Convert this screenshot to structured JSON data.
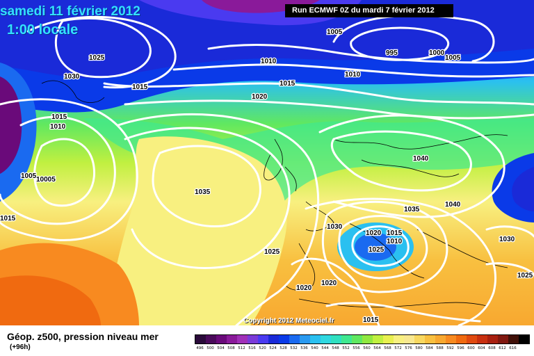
{
  "map": {
    "date_title": "samedi 11 février 2012",
    "time_title": "1:00 locale",
    "run_info": "Run ECMWF 0Z du mardi 7 février 2012",
    "copyright": "Copyright 2012 Meteociel.fr"
  },
  "isobar_labels": [
    {
      "id": "1025-a",
      "text": "1025"
    },
    {
      "id": "1030-a",
      "text": "1030"
    },
    {
      "id": "1015-a",
      "text": "1015"
    },
    {
      "id": "1015-b",
      "text": "1015"
    },
    {
      "id": "1010-a",
      "text": "1010"
    },
    {
      "id": "1005-a",
      "text": "1005"
    },
    {
      "id": "10005",
      "text": "10005"
    },
    {
      "id": "1015-c",
      "text": "1015"
    },
    {
      "id": "1005-b",
      "text": "1005"
    },
    {
      "id": "995",
      "text": "995"
    },
    {
      "id": "1000",
      "text": "1000"
    },
    {
      "id": "1005-c",
      "text": "1005"
    },
    {
      "id": "1010-b",
      "text": "1010"
    },
    {
      "id": "1010-c",
      "text": "1010"
    },
    {
      "id": "1015-d",
      "text": "1015"
    },
    {
      "id": "1020-a",
      "text": "1020"
    },
    {
      "id": "1035-a",
      "text": "1035"
    },
    {
      "id": "1040-a",
      "text": "1040"
    },
    {
      "id": "1040-b",
      "text": "1040"
    },
    {
      "id": "1035-b",
      "text": "1035"
    },
    {
      "id": "1030-b",
      "text": "1030"
    },
    {
      "id": "1020-b",
      "text": "1020"
    },
    {
      "id": "1015-e",
      "text": "1015"
    },
    {
      "id": "1010-d",
      "text": "1010"
    },
    {
      "id": "1030-c",
      "text": "1030"
    },
    {
      "id": "1025-b",
      "text": "1025"
    },
    {
      "id": "1025-c",
      "text": "1025"
    },
    {
      "id": "1020-c",
      "text": "1020"
    },
    {
      "id": "1020-d",
      "text": "1020"
    },
    {
      "id": "1015-f",
      "text": "1015"
    },
    {
      "id": "1025-d",
      "text": "1025"
    }
  ],
  "legend": {
    "title": "Géop. z500, pression niveau mer",
    "subtitle": "(+96h)",
    "scale": [
      {
        "label": "496",
        "color": "#2a0a3a"
      },
      {
        "label": "500",
        "color": "#4a0a5a"
      },
      {
        "label": "504",
        "color": "#6a0a7a"
      },
      {
        "label": "508",
        "color": "#8a1a9a"
      },
      {
        "label": "512",
        "color": "#a030b8"
      },
      {
        "label": "516",
        "color": "#7a3ad8"
      },
      {
        "label": "520",
        "color": "#4a3af0"
      },
      {
        "label": "524",
        "color": "#1a2ad8"
      },
      {
        "label": "528",
        "color": "#0a3ae8"
      },
      {
        "label": "532",
        "color": "#1a6af0"
      },
      {
        "label": "536",
        "color": "#2a9af0"
      },
      {
        "label": "540",
        "color": "#2ac0f0"
      },
      {
        "label": "544",
        "color": "#30d8e0"
      },
      {
        "label": "548",
        "color": "#30e0c0"
      },
      {
        "label": "552",
        "color": "#40e890"
      },
      {
        "label": "556",
        "color": "#60e860"
      },
      {
        "label": "560",
        "color": "#90e840"
      },
      {
        "label": "564",
        "color": "#c0f040"
      },
      {
        "label": "568",
        "color": "#e8f050"
      },
      {
        "label": "572",
        "color": "#f8f080"
      },
      {
        "label": "576",
        "color": "#f8e890"
      },
      {
        "label": "580",
        "color": "#f8d860"
      },
      {
        "label": "584",
        "color": "#f8c040"
      },
      {
        "label": "588",
        "color": "#f8a830"
      },
      {
        "label": "592",
        "color": "#f88a20"
      },
      {
        "label": "596",
        "color": "#f06a10"
      },
      {
        "label": "600",
        "color": "#e04a10"
      },
      {
        "label": "604",
        "color": "#c83010"
      },
      {
        "label": "608",
        "color": "#a82010"
      },
      {
        "label": "612",
        "color": "#801810"
      },
      {
        "label": "616",
        "color": "#401008"
      },
      {
        "label": "",
        "color": "#000000"
      }
    ]
  }
}
